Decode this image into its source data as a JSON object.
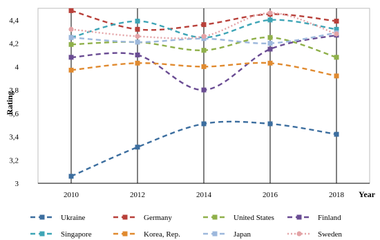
{
  "chart_data": {
    "type": "line",
    "title": "",
    "xlabel": "Year",
    "ylabel": "Rating",
    "x": [
      2010,
      2012,
      2014,
      2016,
      2018
    ],
    "x_tick_labels": [
      "2010",
      "2012",
      "2014",
      "2016",
      "2018"
    ],
    "ylim": [
      3,
      4.5
    ],
    "y_ticks": [
      3,
      3.2,
      3.4,
      3.6,
      3.8,
      4,
      4.2,
      4.4
    ],
    "y_tick_labels": [
      "3",
      "3,2",
      "3,4",
      "3,6",
      "3,8",
      "4",
      "4,2",
      "4,4"
    ],
    "grid": "vertical lines at each year",
    "legend_position": "bottom",
    "series": [
      {
        "name": "Ukraine",
        "values": [
          3.06,
          3.31,
          3.51,
          3.51,
          3.42
        ],
        "color": "#3c6e9f",
        "style": "dashed",
        "marker": "square"
      },
      {
        "name": "Germany",
        "values": [
          4.48,
          4.32,
          4.36,
          4.45,
          4.39
        ],
        "color": "#b8403a",
        "style": "dashed",
        "marker": "square"
      },
      {
        "name": "United States",
        "values": [
          4.19,
          4.21,
          4.14,
          4.25,
          4.08
        ],
        "color": "#8fb04a",
        "style": "dashed",
        "marker": "square"
      },
      {
        "name": "Finland",
        "values": [
          4.08,
          4.1,
          3.8,
          4.15,
          4.27
        ],
        "color": "#6a4c93",
        "style": "dashed",
        "marker": "square"
      },
      {
        "name": "Singapore",
        "values": [
          4.25,
          4.39,
          4.25,
          4.4,
          4.32
        ],
        "color": "#3ea5b6",
        "style": "dashed",
        "marker": "square"
      },
      {
        "name": "Korea, Rep.",
        "values": [
          3.97,
          4.03,
          4.0,
          4.03,
          3.92
        ],
        "color": "#e08a2f",
        "style": "dashed",
        "marker": "square"
      },
      {
        "name": "Japan",
        "values": [
          4.25,
          4.21,
          4.24,
          4.2,
          4.29
        ],
        "color": "#9db8dc",
        "style": "dashed",
        "marker": "square"
      },
      {
        "name": "Sweden",
        "values": [
          4.32,
          4.26,
          4.26,
          4.46,
          4.28
        ],
        "color": "#e3a3a6",
        "style": "dotted",
        "marker": "circle"
      }
    ]
  }
}
